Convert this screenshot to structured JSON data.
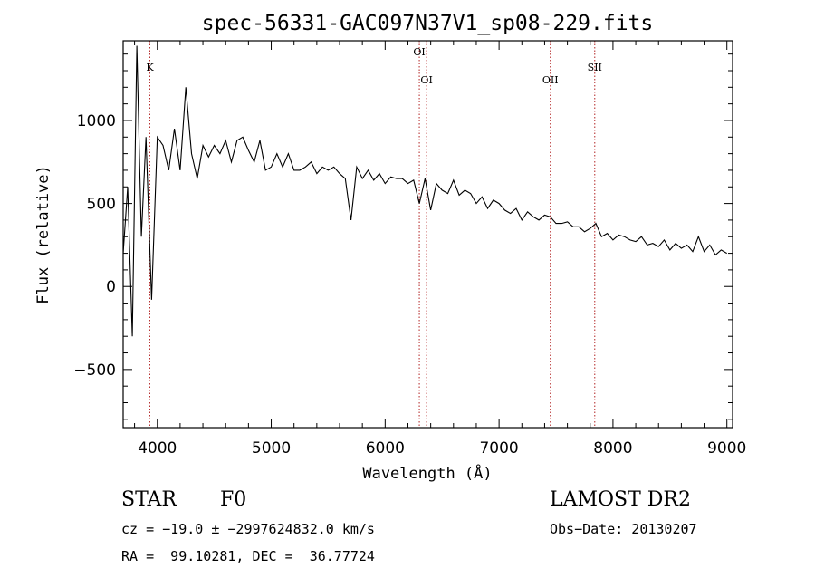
{
  "chart_data": {
    "type": "line",
    "title": "spec-56331-GAC097N37V1_sp08-229.fits",
    "xlabel": "Wavelength (Å)",
    "ylabel": "Flux (relative)",
    "xlim": [
      3700,
      9050
    ],
    "ylim": [
      -850,
      1480
    ],
    "x_ticks": [
      4000,
      5000,
      6000,
      7000,
      8000,
      9000
    ],
    "y_ticks": [
      -500,
      0,
      500,
      1000
    ],
    "grid": false,
    "line_color": "#000000",
    "marker_color": "#b22222",
    "lines": [
      {
        "name": "K",
        "x": 3934
      },
      {
        "name": "OI",
        "x": 6300
      },
      {
        "name": "OI",
        "x": 6364
      },
      {
        "name": "OII",
        "x": 7450
      },
      {
        "name": "SII",
        "x": 7840
      }
    ],
    "series": [
      {
        "x": [
          3700,
          3740,
          3780,
          3820,
          3860,
          3900,
          3950,
          4000,
          4050,
          4100,
          4150,
          4200,
          4250,
          4300,
          4350,
          4400,
          4450,
          4500,
          4550,
          4600,
          4650,
          4700,
          4750,
          4800,
          4850,
          4900,
          4950,
          5000,
          5050,
          5100,
          5150,
          5200,
          5250,
          5300,
          5350,
          5400,
          5450,
          5500,
          5550,
          5600,
          5650,
          5700,
          5750,
          5800,
          5850,
          5900,
          5950,
          6000,
          6050,
          6100,
          6150,
          6200,
          6250,
          6300,
          6350,
          6400,
          6450,
          6500,
          6550,
          6600,
          6650,
          6700,
          6750,
          6800,
          6850,
          6900,
          6950,
          7000,
          7050,
          7100,
          7150,
          7200,
          7250,
          7300,
          7350,
          7400,
          7450,
          7500,
          7550,
          7600,
          7650,
          7700,
          7750,
          7800,
          7850,
          7900,
          7950,
          8000,
          8050,
          8100,
          8150,
          8200,
          8250,
          8300,
          8350,
          8400,
          8450,
          8500,
          8550,
          8600,
          8650,
          8700,
          8750,
          8800,
          8850,
          8900,
          8950,
          9000
        ],
        "y": [
          200,
          600,
          -300,
          1450,
          300,
          900,
          -80,
          900,
          850,
          700,
          950,
          700,
          1200,
          800,
          650,
          850,
          780,
          850,
          800,
          880,
          750,
          880,
          900,
          820,
          750,
          880,
          700,
          720,
          800,
          720,
          800,
          700,
          700,
          720,
          750,
          680,
          720,
          700,
          720,
          680,
          650,
          400,
          720,
          650,
          700,
          640,
          680,
          620,
          660,
          650,
          650,
          620,
          640,
          500,
          650,
          460,
          620,
          580,
          560,
          640,
          550,
          580,
          560,
          500,
          540,
          470,
          520,
          500,
          460,
          440,
          470,
          400,
          450,
          420,
          400,
          430,
          420,
          380,
          380,
          390,
          360,
          360,
          330,
          350,
          380,
          300,
          320,
          280,
          310,
          300,
          280,
          270,
          300,
          250,
          260,
          240,
          280,
          220,
          260,
          230,
          250,
          210,
          300,
          210,
          250,
          190,
          220,
          200
        ]
      }
    ]
  },
  "info": {
    "class_label": "STAR",
    "subclass": "F0",
    "survey": "LAMOST DR2",
    "cz_line": "cz = −19.0 ± −2997624832.0 km/s",
    "obs_date": "Obs−Date: 20130207",
    "coords": "RA =  99.10281, DEC =  36.77724"
  }
}
